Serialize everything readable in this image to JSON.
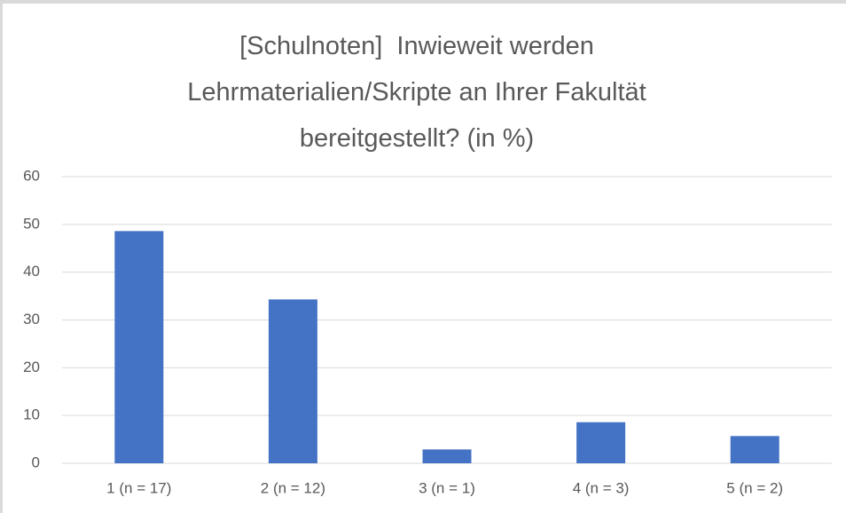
{
  "chart_data": {
    "type": "bar",
    "title": "[Schulnoten]  Inwieweit werden Lehrmaterialien/Skripte an Ihrer Fakultät bereitgestellt? (in %)",
    "categories": [
      "1 (n = 17)",
      "2 (n = 12)",
      "3 (n = 1)",
      "4 (n = 3)",
      "5 (n = 2)"
    ],
    "values": [
      48.6,
      34.3,
      2.9,
      8.6,
      5.7
    ],
    "color": "#4472c4",
    "ylim": [
      0,
      60
    ],
    "yticks": [
      0,
      10,
      20,
      30,
      40,
      50,
      60
    ],
    "grid": true
  }
}
